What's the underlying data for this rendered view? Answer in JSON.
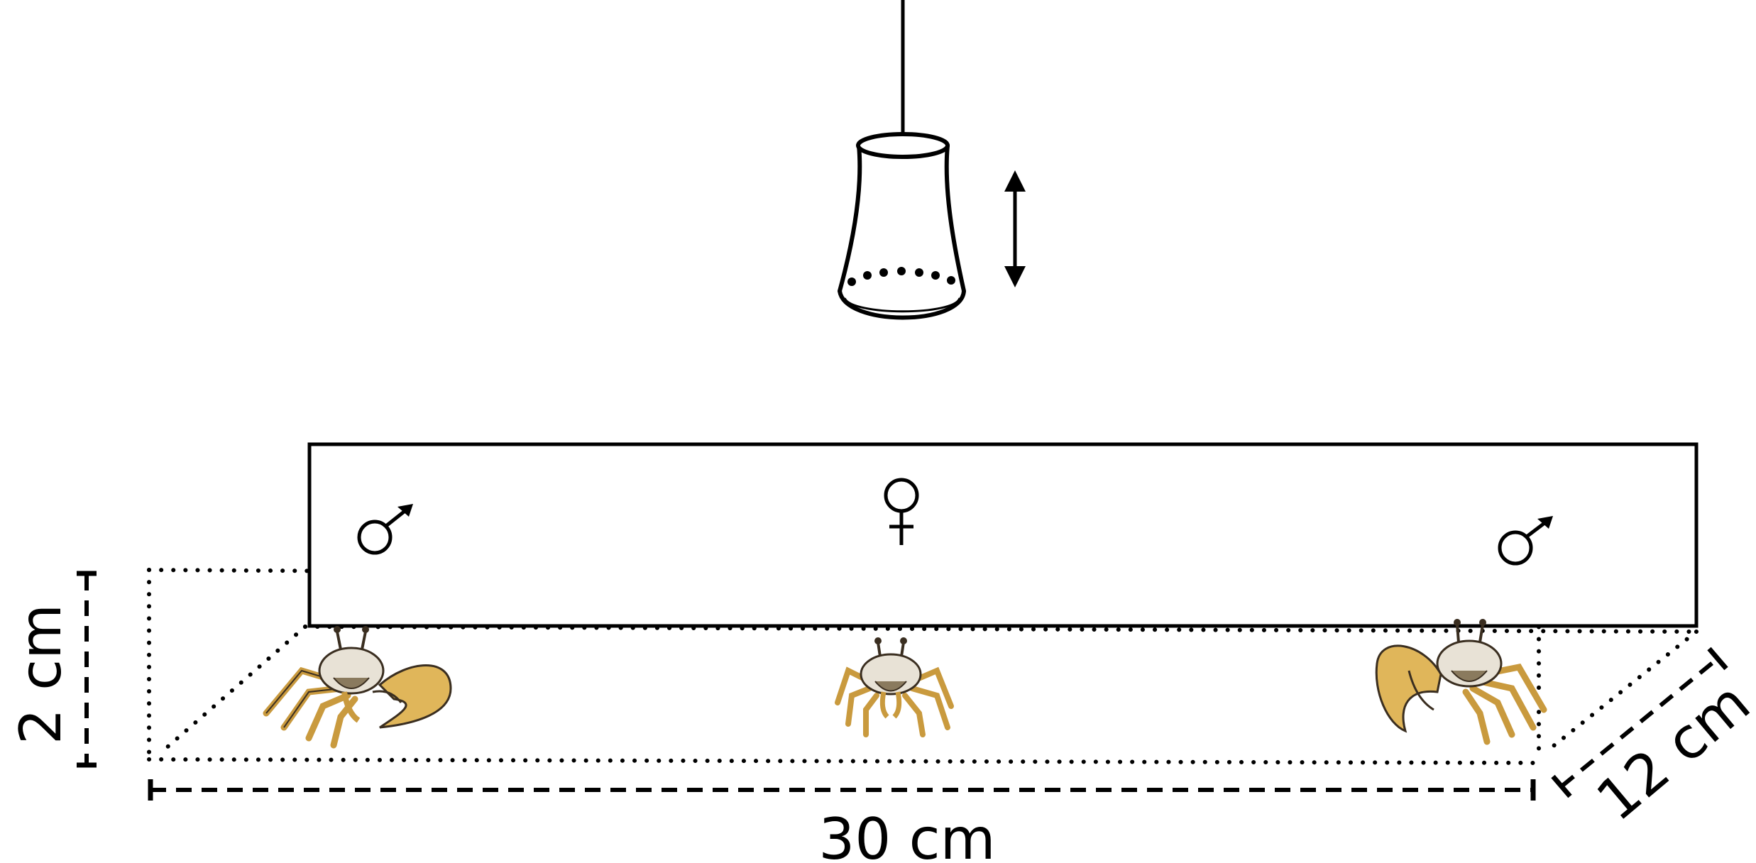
{
  "labels": {
    "height": "2 cm",
    "length": "30 cm",
    "depth": "12 cm"
  },
  "symbols": {
    "male_left": "♂",
    "female": "♀",
    "male_right": "♂"
  },
  "colors": {
    "line": "#000000",
    "crab_shell": "#e8e2d6",
    "crab_claw": "#e0b65a",
    "crab_leg": "#c99a3e",
    "crab_dark": "#3a2e20"
  },
  "icons": {
    "lamp": "pendant-lamp-icon",
    "arrow": "vertical-double-arrow-icon",
    "crab": "fiddler-crab-icon"
  }
}
